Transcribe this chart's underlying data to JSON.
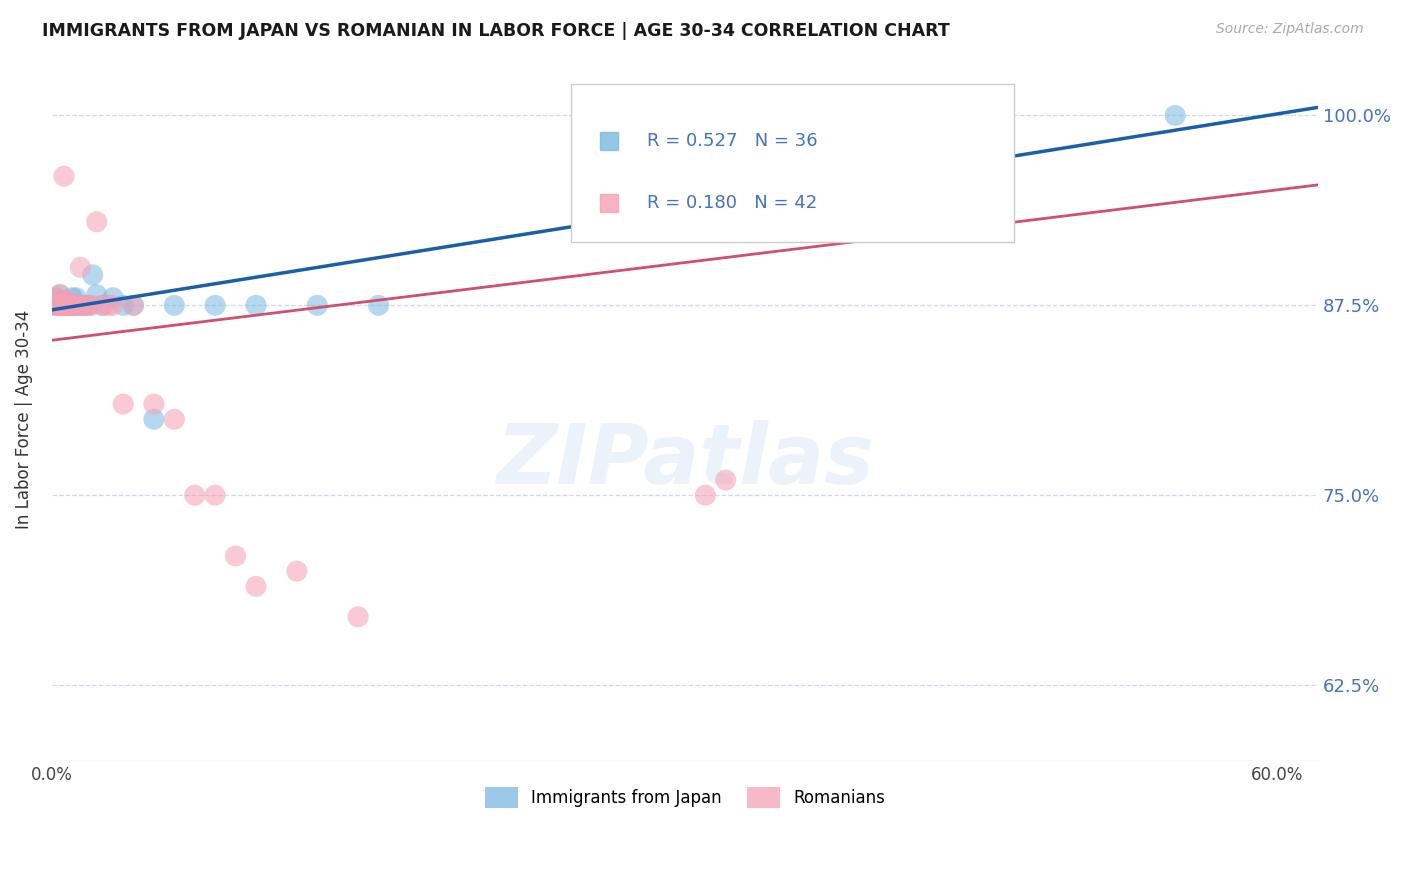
{
  "title": "IMMIGRANTS FROM JAPAN VS ROMANIAN IN LABOR FORCE | AGE 30-34 CORRELATION CHART",
  "source": "Source: ZipAtlas.com",
  "ylabel": "In Labor Force | Age 30-34",
  "R_japan": 0.527,
  "N_japan": 36,
  "R_romanian": 0.18,
  "N_romanian": 42,
  "japan_color": "#7ab8e0",
  "romanian_color": "#f5a0b5",
  "japan_trend_color": "#1a5fa8",
  "romanian_trend_color": "#d05070",
  "background_color": "#ffffff",
  "grid_color": "#c8d4e8",
  "axis_label_color": "#4472c4",
  "legend_japan_label": "Immigrants from Japan",
  "legend_romanian_label": "Romanians",
  "japan_x": [
    0.002,
    0.002,
    0.003,
    0.003,
    0.004,
    0.004,
    0.005,
    0.005,
    0.006,
    0.006,
    0.007,
    0.007,
    0.008,
    0.008,
    0.009,
    0.01,
    0.01,
    0.011,
    0.012,
    0.013,
    0.015,
    0.016,
    0.018,
    0.02,
    0.022,
    0.025,
    0.03,
    0.035,
    0.04,
    0.05,
    0.06,
    0.08,
    0.1,
    0.13,
    0.16,
    0.55
  ],
  "japan_y": [
    0.88,
    0.875,
    0.878,
    0.875,
    0.882,
    0.877,
    0.875,
    0.876,
    0.875,
    0.878,
    0.875,
    0.876,
    0.876,
    0.875,
    0.875,
    0.875,
    0.88,
    0.875,
    0.88,
    0.875,
    0.875,
    0.875,
    0.875,
    0.895,
    0.882,
    0.875,
    0.88,
    0.875,
    0.875,
    0.8,
    0.875,
    0.875,
    0.875,
    0.875,
    0.875,
    1.0
  ],
  "romanian_x": [
    0.001,
    0.002,
    0.002,
    0.003,
    0.003,
    0.004,
    0.004,
    0.005,
    0.005,
    0.006,
    0.006,
    0.007,
    0.007,
    0.008,
    0.008,
    0.009,
    0.01,
    0.01,
    0.011,
    0.012,
    0.013,
    0.014,
    0.015,
    0.016,
    0.018,
    0.02,
    0.022,
    0.025,
    0.028,
    0.03,
    0.035,
    0.04,
    0.05,
    0.06,
    0.07,
    0.08,
    0.09,
    0.1,
    0.12,
    0.15,
    0.32,
    0.33
  ],
  "romanian_y": [
    0.875,
    0.88,
    0.875,
    0.875,
    0.878,
    0.875,
    0.882,
    0.875,
    0.876,
    0.875,
    0.96,
    0.875,
    0.875,
    0.875,
    0.878,
    0.875,
    0.875,
    0.875,
    0.875,
    0.875,
    0.875,
    0.9,
    0.875,
    0.875,
    0.875,
    0.875,
    0.93,
    0.875,
    0.875,
    0.875,
    0.81,
    0.875,
    0.81,
    0.8,
    0.75,
    0.75,
    0.71,
    0.69,
    0.7,
    0.67,
    0.75,
    0.76
  ],
  "xlim_min": 0.0,
  "xlim_max": 0.62,
  "ylim_min": 0.575,
  "ylim_max": 1.025
}
